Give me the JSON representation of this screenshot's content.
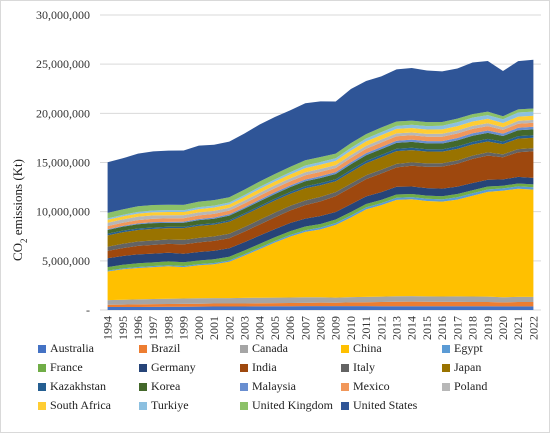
{
  "chart_data": {
    "type": "area",
    "stacked": true,
    "x": [
      "1994",
      "1995",
      "1996",
      "1997",
      "1998",
      "1999",
      "2000",
      "2001",
      "2002",
      "2003",
      "2004",
      "2005",
      "2006",
      "2007",
      "2008",
      "2009",
      "2010",
      "2011",
      "2012",
      "2013",
      "2014",
      "2015",
      "2016",
      "2017",
      "2018",
      "2019",
      "2020",
      "2021",
      "2022"
    ],
    "ylabel": "CO",
    "ylabel_sub": "2",
    "ylabel_suffix": " emissions (Kt)",
    "ylim": [
      0,
      30000000
    ],
    "yticks": [
      0,
      5000000,
      10000000,
      15000000,
      20000000,
      25000000,
      30000000
    ],
    "ytick_labels": [
      "-",
      "5,000,000",
      "10,000,000",
      "15,000,000",
      "20,000,000",
      "25,000,000",
      "30,000,000"
    ],
    "grid": "horizontal",
    "legend_position": "bottom",
    "series": [
      {
        "name": "Australia",
        "color": "#4472C4",
        "values": [
          300000,
          305000,
          310000,
          320000,
          330000,
          335000,
          340000,
          350000,
          355000,
          360000,
          370000,
          380000,
          385000,
          390000,
          395000,
          395000,
          390000,
          390000,
          385000,
          380000,
          375000,
          380000,
          385000,
          385000,
          385000,
          380000,
          370000,
          365000,
          370000
        ]
      },
      {
        "name": "Brazil",
        "color": "#ED7D31",
        "values": [
          230000,
          245000,
          260000,
          275000,
          285000,
          290000,
          300000,
          305000,
          300000,
          300000,
          310000,
          320000,
          325000,
          335000,
          350000,
          340000,
          385000,
          400000,
          430000,
          460000,
          480000,
          460000,
          440000,
          440000,
          430000,
          430000,
          410000,
          450000,
          440000
        ]
      },
      {
        "name": "Canada",
        "color": "#A5A5A5",
        "values": [
          480000,
          490000,
          505000,
          520000,
          530000,
          540000,
          555000,
          550000,
          555000,
          570000,
          565000,
          560000,
          555000,
          565000,
          555000,
          525000,
          535000,
          545000,
          545000,
          555000,
          555000,
          550000,
          545000,
          555000,
          560000,
          555000,
          510000,
          520000,
          530000
        ]
      },
      {
        "name": "China",
        "color": "#FFC000",
        "values": [
          2900000,
          3100000,
          3200000,
          3250000,
          3300000,
          3200000,
          3350000,
          3450000,
          3700000,
          4300000,
          4950000,
          5600000,
          6200000,
          6650000,
          6900000,
          7400000,
          8100000,
          8900000,
          9300000,
          9800000,
          9850000,
          9700000,
          9650000,
          9850000,
          10250000,
          10650000,
          10850000,
          11000000,
          10900000
        ]
      },
      {
        "name": "Egypt",
        "color": "#5B9BD5",
        "values": [
          90000,
          95000,
          100000,
          105000,
          110000,
          115000,
          120000,
          125000,
          130000,
          135000,
          145000,
          155000,
          165000,
          175000,
          185000,
          190000,
          200000,
          205000,
          210000,
          215000,
          220000,
          225000,
          230000,
          240000,
          245000,
          245000,
          230000,
          240000,
          245000
        ]
      },
      {
        "name": "France",
        "color": "#70AD47",
        "values": [
          360000,
          365000,
          375000,
          370000,
          385000,
          380000,
          375000,
          380000,
          380000,
          385000,
          385000,
          385000,
          380000,
          370000,
          365000,
          350000,
          355000,
          335000,
          335000,
          335000,
          310000,
          315000,
          315000,
          320000,
          310000,
          300000,
          270000,
          295000,
          290000
        ]
      },
      {
        "name": "Germany",
        "color": "#264478",
        "values": [
          900000,
          895000,
          910000,
          890000,
          880000,
          855000,
          860000,
          870000,
          855000,
          855000,
          845000,
          825000,
          835000,
          810000,
          815000,
          760000,
          790000,
          775000,
          780000,
          795000,
          765000,
          770000,
          775000,
          760000,
          735000,
          690000,
          640000,
          670000,
          665000
        ]
      },
      {
        "name": "India",
        "color": "#9E480E",
        "values": [
          750000,
          800000,
          860000,
          890000,
          900000,
          960000,
          980000,
          1000000,
          1020000,
          1060000,
          1130000,
          1200000,
          1270000,
          1370000,
          1480000,
          1620000,
          1690000,
          1760000,
          1900000,
          1970000,
          2120000,
          2160000,
          2240000,
          2320000,
          2450000,
          2450000,
          2260000,
          2500000,
          2700000
        ]
      },
      {
        "name": "Italy",
        "color": "#636363",
        "values": [
          425000,
          445000,
          440000,
          445000,
          455000,
          460000,
          460000,
          460000,
          465000,
          475000,
          480000,
          475000,
          475000,
          470000,
          455000,
          405000,
          410000,
          400000,
          380000,
          350000,
          335000,
          345000,
          340000,
          340000,
          340000,
          330000,
          290000,
          320000,
          320000
        ]
      },
      {
        "name": "Japan",
        "color": "#997300",
        "values": [
          1150000,
          1170000,
          1180000,
          1180000,
          1150000,
          1190000,
          1210000,
          1190000,
          1220000,
          1230000,
          1230000,
          1240000,
          1220000,
          1250000,
          1180000,
          1110000,
          1170000,
          1210000,
          1270000,
          1300000,
          1250000,
          1210000,
          1180000,
          1180000,
          1140000,
          1110000,
          1040000,
          1070000,
          1060000
        ]
      },
      {
        "name": "Kazakhstan",
        "color": "#255E91",
        "values": [
          185000,
          165000,
          145000,
          140000,
          140000,
          130000,
          140000,
          140000,
          150000,
          160000,
          170000,
          180000,
          190000,
          205000,
          220000,
          205000,
          225000,
          230000,
          240000,
          240000,
          245000,
          230000,
          235000,
          245000,
          255000,
          260000,
          250000,
          255000,
          255000
        ]
      },
      {
        "name": "Korea",
        "color": "#43682B",
        "values": [
          370000,
          400000,
          430000,
          450000,
          390000,
          420000,
          450000,
          460000,
          470000,
          475000,
          485000,
          480000,
          490000,
          505000,
          520000,
          525000,
          570000,
          590000,
          590000,
          590000,
          590000,
          600000,
          600000,
          615000,
          625000,
          610000,
          575000,
          600000,
          590000
        ]
      },
      {
        "name": "Malaysia",
        "color": "#698ED0",
        "values": [
          75000,
          85000,
          95000,
          105000,
          105000,
          110000,
          120000,
          130000,
          135000,
          145000,
          160000,
          170000,
          170000,
          180000,
          195000,
          195000,
          205000,
          210000,
          215000,
          225000,
          230000,
          230000,
          240000,
          235000,
          245000,
          250000,
          240000,
          250000,
          265000
        ]
      },
      {
        "name": "Mexico",
        "color": "#F1975A",
        "values": [
          320000,
          315000,
          325000,
          335000,
          355000,
          350000,
          365000,
          365000,
          370000,
          380000,
          390000,
          410000,
          420000,
          425000,
          430000,
          420000,
          430000,
          445000,
          460000,
          450000,
          440000,
          445000,
          450000,
          460000,
          450000,
          440000,
          380000,
          400000,
          410000
        ]
      },
      {
        "name": "Poland",
        "color": "#B7B7B7",
        "values": [
          340000,
          340000,
          355000,
          345000,
          325000,
          315000,
          305000,
          305000,
          295000,
          300000,
          305000,
          300000,
          310000,
          310000,
          305000,
          290000,
          305000,
          305000,
          300000,
          300000,
          285000,
          290000,
          300000,
          310000,
          310000,
          295000,
          280000,
          300000,
          295000
        ]
      },
      {
        "name": "South Africa",
        "color": "#FFCD33",
        "values": [
          300000,
          305000,
          315000,
          325000,
          330000,
          320000,
          330000,
          340000,
          335000,
          360000,
          390000,
          385000,
          390000,
          420000,
          435000,
          440000,
          450000,
          445000,
          440000,
          450000,
          465000,
          445000,
          445000,
          450000,
          445000,
          450000,
          420000,
          430000,
          420000
        ]
      },
      {
        "name": "Turkiye",
        "color": "#8CC0E0",
        "values": [
          145000,
          155000,
          170000,
          180000,
          185000,
          180000,
          205000,
          190000,
          195000,
          205000,
          210000,
          220000,
          235000,
          265000,
          265000,
          265000,
          275000,
          290000,
          310000,
          305000,
          325000,
          345000,
          365000,
          385000,
          385000,
          375000,
          380000,
          415000,
          420000
        ]
      },
      {
        "name": "United Kingdom",
        "color": "#8CC168",
        "values": [
          560000,
          555000,
          575000,
          555000,
          555000,
          545000,
          555000,
          560000,
          540000,
          550000,
          550000,
          545000,
          540000,
          535000,
          515000,
          470000,
          485000,
          450000,
          465000,
          455000,
          420000,
          405000,
          385000,
          375000,
          365000,
          355000,
          315000,
          325000,
          320000
        ]
      },
      {
        "name": "United States",
        "color": "#2F5597",
        "values": [
          5150000,
          5200000,
          5350000,
          5450000,
          5500000,
          5520000,
          5700000,
          5630000,
          5650000,
          5700000,
          5800000,
          5800000,
          5750000,
          5800000,
          5650000,
          5300000,
          5500000,
          5400000,
          5200000,
          5300000,
          5350000,
          5250000,
          5150000,
          5100000,
          5250000,
          5150000,
          4600000,
          4900000,
          4950000
        ]
      }
    ]
  }
}
